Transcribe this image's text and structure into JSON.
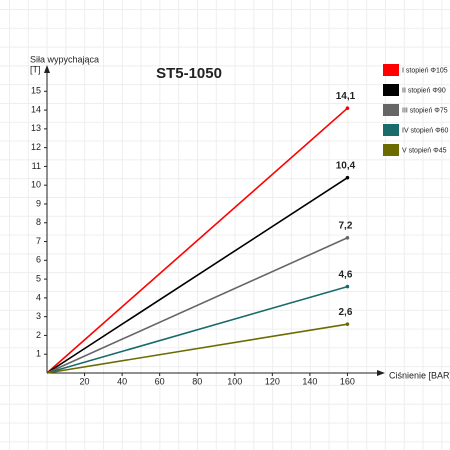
{
  "chart_data": {
    "type": "line",
    "title": "ST5-1050",
    "ylabel": "Siła wypychająca",
    "yunit": "[T]",
    "xlabel": "Ciśnienie [BAR]",
    "x": [
      0,
      160
    ],
    "series": [
      {
        "name": "I stopień Φ105",
        "color": "#ff0000",
        "values": [
          0,
          14.1
        ],
        "value_label": "14,1"
      },
      {
        "name": "II stopień Φ90",
        "color": "#000000",
        "values": [
          0,
          10.4
        ],
        "value_label": "10,4"
      },
      {
        "name": "III stopień Φ75",
        "color": "#666666",
        "values": [
          0,
          7.2
        ],
        "value_label": "7,2"
      },
      {
        "name": "IV stopień Φ60",
        "color": "#1a6b6b",
        "values": [
          0,
          4.6
        ],
        "value_label": "4,6"
      },
      {
        "name": "V stopień Φ45",
        "color": "#6b6b00",
        "values": [
          0,
          2.6
        ],
        "value_label": "2,6"
      }
    ],
    "xlim": [
      0,
      180
    ],
    "ylim": [
      0,
      16.4
    ],
    "xticks": [
      20,
      40,
      60,
      80,
      100,
      120,
      140,
      160
    ],
    "yticks": [
      1,
      2,
      3,
      4,
      5,
      6,
      7,
      8,
      9,
      10,
      11,
      12,
      13,
      14,
      15
    ]
  }
}
